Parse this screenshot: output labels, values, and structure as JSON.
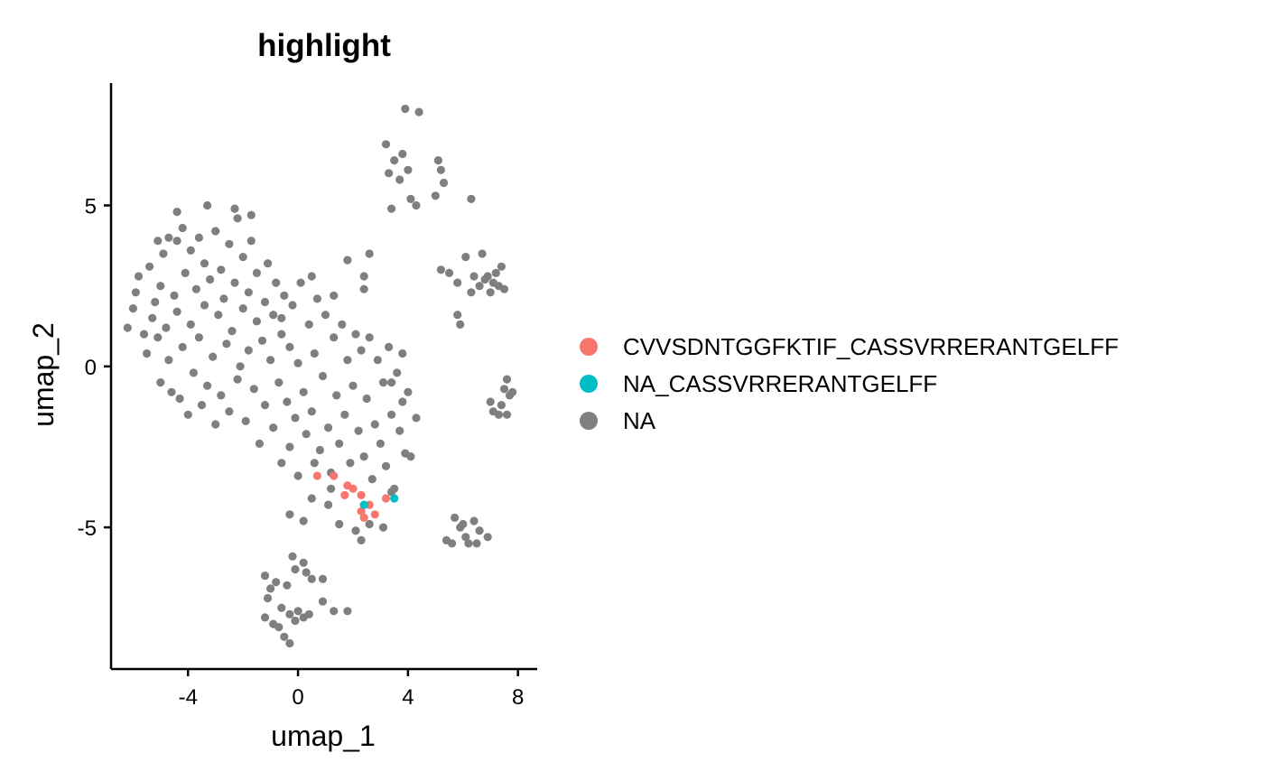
{
  "chart_data": {
    "type": "scatter",
    "title": "highlight",
    "xlabel": "umap_1",
    "ylabel": "umap_2",
    "xlim": [
      -6.8,
      8.7
    ],
    "ylim": [
      -9.4,
      8.8
    ],
    "x_ticks": [
      -4,
      0,
      4,
      8
    ],
    "x_tick_labels": [
      "-4",
      "0",
      "4",
      "8"
    ],
    "y_ticks": [
      -5,
      0,
      5
    ],
    "y_tick_labels": [
      "-5",
      "0",
      "5"
    ],
    "grid": false,
    "legend_position": "right",
    "series": [
      {
        "name": "CVVSDNTGGFKTIF_CASSVRRERANTGELFF",
        "color": "#F8766D",
        "points": [
          [
            0.7,
            -3.4
          ],
          [
            1.3,
            -3.4
          ],
          [
            1.7,
            -4.0
          ],
          [
            1.8,
            -3.7
          ],
          [
            2.3,
            -4.0
          ],
          [
            2.3,
            -4.5
          ],
          [
            2.4,
            -4.7
          ],
          [
            2.6,
            -4.3
          ],
          [
            2.8,
            -4.6
          ],
          [
            3.2,
            -4.1
          ],
          [
            2.0,
            -3.8
          ]
        ]
      },
      {
        "name": "NA_CASSVRRERANTGELFF",
        "color": "#00BFC4",
        "points": [
          [
            2.4,
            -4.3
          ],
          [
            3.5,
            -4.1
          ]
        ]
      },
      {
        "name": "NA",
        "color": "#7F7F7F",
        "points": [
          [
            -6.2,
            1.2
          ],
          [
            -6.0,
            1.8
          ],
          [
            -5.9,
            2.3
          ],
          [
            -5.8,
            2.8
          ],
          [
            -5.6,
            1.0
          ],
          [
            -5.5,
            0.4
          ],
          [
            -5.4,
            3.1
          ],
          [
            -5.3,
            1.5
          ],
          [
            -5.2,
            2.0
          ],
          [
            -5.1,
            0.9
          ],
          [
            -5.0,
            -0.5
          ],
          [
            -5.0,
            2.5
          ],
          [
            -4.9,
            3.5
          ],
          [
            -4.8,
            1.2
          ],
          [
            -4.7,
            0.2
          ],
          [
            -4.6,
            -0.8
          ],
          [
            -4.5,
            2.2
          ],
          [
            -4.4,
            3.9
          ],
          [
            -4.4,
            1.7
          ],
          [
            -4.3,
            -1.0
          ],
          [
            -4.2,
            4.3
          ],
          [
            -4.2,
            0.6
          ],
          [
            -4.1,
            2.9
          ],
          [
            -4.0,
            -1.5
          ],
          [
            -3.9,
            1.3
          ],
          [
            -3.9,
            3.6
          ],
          [
            -3.8,
            -0.2
          ],
          [
            -3.7,
            2.4
          ],
          [
            -3.6,
            4.0
          ],
          [
            -3.6,
            0.9
          ],
          [
            -3.5,
            -1.2
          ],
          [
            -3.4,
            3.2
          ],
          [
            -3.4,
            1.9
          ],
          [
            -3.3,
            -0.6
          ],
          [
            -3.2,
            2.7
          ],
          [
            -3.1,
            0.3
          ],
          [
            -3.0,
            4.2
          ],
          [
            -3.0,
            -1.8
          ],
          [
            -2.9,
            1.6
          ],
          [
            -2.8,
            3.0
          ],
          [
            -2.8,
            -0.9
          ],
          [
            -2.7,
            2.1
          ],
          [
            -2.6,
            0.7
          ],
          [
            -2.5,
            3.8
          ],
          [
            -2.5,
            -1.4
          ],
          [
            -2.4,
            1.1
          ],
          [
            -2.3,
            2.6
          ],
          [
            -2.2,
            -0.4
          ],
          [
            -2.2,
            4.6
          ],
          [
            -2.1,
            0.0
          ],
          [
            -2.0,
            3.4
          ],
          [
            -2.0,
            1.8
          ],
          [
            -1.9,
            -1.7
          ],
          [
            -1.8,
            2.3
          ],
          [
            -1.8,
            0.5
          ],
          [
            -1.7,
            3.9
          ],
          [
            -1.6,
            -0.7
          ],
          [
            -1.5,
            1.4
          ],
          [
            -1.5,
            2.9
          ],
          [
            -1.4,
            -2.4
          ],
          [
            -1.3,
            0.8
          ],
          [
            -1.2,
            2.0
          ],
          [
            -1.2,
            -1.2
          ],
          [
            -1.1,
            3.2
          ],
          [
            -1.0,
            0.2
          ],
          [
            -0.9,
            -1.9
          ],
          [
            -0.9,
            1.6
          ],
          [
            -0.8,
            2.6
          ],
          [
            -0.7,
            -0.5
          ],
          [
            -0.6,
            -3.0
          ],
          [
            -0.6,
            1.0
          ],
          [
            -0.5,
            2.2
          ],
          [
            -0.4,
            -1.1
          ],
          [
            -0.3,
            -2.5
          ],
          [
            -0.3,
            0.6
          ],
          [
            -0.2,
            1.9
          ],
          [
            -0.1,
            -1.6
          ],
          [
            0.0,
            -3.4
          ],
          [
            0.0,
            0.1
          ],
          [
            0.1,
            2.6
          ],
          [
            0.2,
            -0.8
          ],
          [
            0.3,
            -2.1
          ],
          [
            0.4,
            1.3
          ],
          [
            0.5,
            -1.4
          ],
          [
            0.6,
            -3.0
          ],
          [
            0.6,
            0.4
          ],
          [
            0.7,
            2.1
          ],
          [
            0.8,
            -2.6
          ],
          [
            0.9,
            -0.3
          ],
          [
            1.0,
            1.6
          ],
          [
            1.1,
            -1.9
          ],
          [
            1.2,
            -3.3
          ],
          [
            1.3,
            0.9
          ],
          [
            1.4,
            -0.9
          ],
          [
            1.5,
            -2.4
          ],
          [
            1.6,
            1.3
          ],
          [
            1.7,
            -1.5
          ],
          [
            1.8,
            0.2
          ],
          [
            1.9,
            -3.0
          ],
          [
            2.0,
            -0.6
          ],
          [
            2.1,
            1.0
          ],
          [
            2.2,
            -2.0
          ],
          [
            2.3,
            0.5
          ],
          [
            2.4,
            -2.8
          ],
          [
            2.5,
            -1.0
          ],
          [
            2.6,
            0.9
          ],
          [
            2.7,
            -3.5
          ],
          [
            2.8,
            -1.8
          ],
          [
            2.9,
            0.2
          ],
          [
            3.0,
            -2.4
          ],
          [
            3.1,
            -0.5
          ],
          [
            3.2,
            -3.1
          ],
          [
            3.3,
            0.6
          ],
          [
            3.4,
            -1.5
          ],
          [
            3.5,
            -3.8
          ],
          [
            3.6,
            -0.2
          ],
          [
            3.7,
            -2.0
          ],
          [
            3.8,
            0.4
          ],
          [
            3.9,
            -2.7
          ],
          [
            4.0,
            -0.8
          ],
          [
            2.4,
            2.8
          ],
          [
            2.6,
            3.5
          ],
          [
            1.8,
            3.3
          ],
          [
            2.4,
            2.4
          ],
          [
            -5.1,
            3.9
          ],
          [
            -4.7,
            4.0
          ],
          [
            -4.4,
            4.8
          ],
          [
            -3.3,
            5.0
          ],
          [
            -2.3,
            4.9
          ],
          [
            -1.7,
            4.7
          ],
          [
            -0.6,
            1.5
          ],
          [
            0.5,
            2.8
          ],
          [
            1.3,
            2.2
          ],
          [
            3.4,
            -0.5
          ],
          [
            3.8,
            -1.1
          ],
          [
            4.3,
            -1.6
          ],
          [
            4.1,
            -2.8
          ],
          [
            -0.3,
            -4.6
          ],
          [
            0.2,
            -4.8
          ],
          [
            0.5,
            -4.1
          ],
          [
            1.1,
            -4.3
          ],
          [
            1.5,
            -4.9
          ],
          [
            2.1,
            -5.1
          ],
          [
            2.6,
            -4.9
          ],
          [
            3.1,
            -5.0
          ],
          [
            2.3,
            -5.4
          ],
          [
            3.4,
            -3.9
          ],
          [
            1.2,
            -3.8
          ],
          [
            3.2,
            6.9
          ],
          [
            3.5,
            6.4
          ],
          [
            3.8,
            6.6
          ],
          [
            3.3,
            6.0
          ],
          [
            3.7,
            5.8
          ],
          [
            4.0,
            6.1
          ],
          [
            4.1,
            5.2
          ],
          [
            4.3,
            5.0
          ],
          [
            3.4,
            4.9
          ],
          [
            3.9,
            8.0
          ],
          [
            4.4,
            7.9
          ],
          [
            5.0,
            5.3
          ],
          [
            5.1,
            6.4
          ],
          [
            5.2,
            6.1
          ],
          [
            5.3,
            5.7
          ],
          [
            6.3,
            5.2
          ],
          [
            -0.2,
            -5.9
          ],
          [
            -0.1,
            -6.3
          ],
          [
            0.2,
            -6.1
          ],
          [
            0.3,
            -6.4
          ],
          [
            0.5,
            -6.6
          ],
          [
            0.9,
            -6.6
          ],
          [
            -1.2,
            -6.5
          ],
          [
            -1.0,
            -6.9
          ],
          [
            -0.8,
            -6.7
          ],
          [
            -0.4,
            -6.8
          ],
          [
            -1.1,
            -7.2
          ],
          [
            -0.6,
            -7.5
          ],
          [
            -0.3,
            -7.7
          ],
          [
            -0.1,
            -7.9
          ],
          [
            0.0,
            -7.6
          ],
          [
            0.4,
            -7.7
          ],
          [
            0.9,
            -7.3
          ],
          [
            1.3,
            -7.6
          ],
          [
            1.8,
            -7.6
          ],
          [
            -1.2,
            -7.8
          ],
          [
            -0.7,
            -8.1
          ],
          [
            -0.5,
            -8.4
          ],
          [
            -0.3,
            -8.6
          ],
          [
            -0.9,
            -8.0
          ],
          [
            0.2,
            -7.8
          ],
          [
            5.2,
            3.0
          ],
          [
            5.5,
            2.9
          ],
          [
            5.8,
            2.6
          ],
          [
            5.8,
            1.6
          ],
          [
            5.9,
            1.3
          ],
          [
            6.1,
            3.4
          ],
          [
            6.3,
            2.3
          ],
          [
            6.4,
            2.8
          ],
          [
            6.6,
            2.5
          ],
          [
            6.7,
            3.5
          ],
          [
            6.8,
            2.7
          ],
          [
            7.0,
            2.3
          ],
          [
            7.2,
            2.9
          ],
          [
            7.3,
            2.5
          ],
          [
            7.4,
            3.1
          ],
          [
            7.5,
            2.4
          ],
          [
            6.9,
            2.8
          ],
          [
            7.1,
            2.6
          ],
          [
            5.7,
            -4.7
          ],
          [
            5.9,
            -5.0
          ],
          [
            6.0,
            -4.9
          ],
          [
            6.1,
            -5.3
          ],
          [
            6.2,
            -5.5
          ],
          [
            6.4,
            -4.8
          ],
          [
            6.5,
            -5.5
          ],
          [
            6.6,
            -5.1
          ],
          [
            6.9,
            -5.3
          ],
          [
            5.4,
            -5.4
          ],
          [
            5.6,
            -5.5
          ],
          [
            7.0,
            -1.1
          ],
          [
            7.1,
            -1.4
          ],
          [
            7.3,
            -1.5
          ],
          [
            7.4,
            -1.2
          ],
          [
            7.5,
            -0.7
          ],
          [
            7.6,
            -0.4
          ],
          [
            7.7,
            -0.9
          ],
          [
            7.8,
            -0.8
          ],
          [
            7.6,
            -1.5
          ]
        ]
      }
    ]
  }
}
